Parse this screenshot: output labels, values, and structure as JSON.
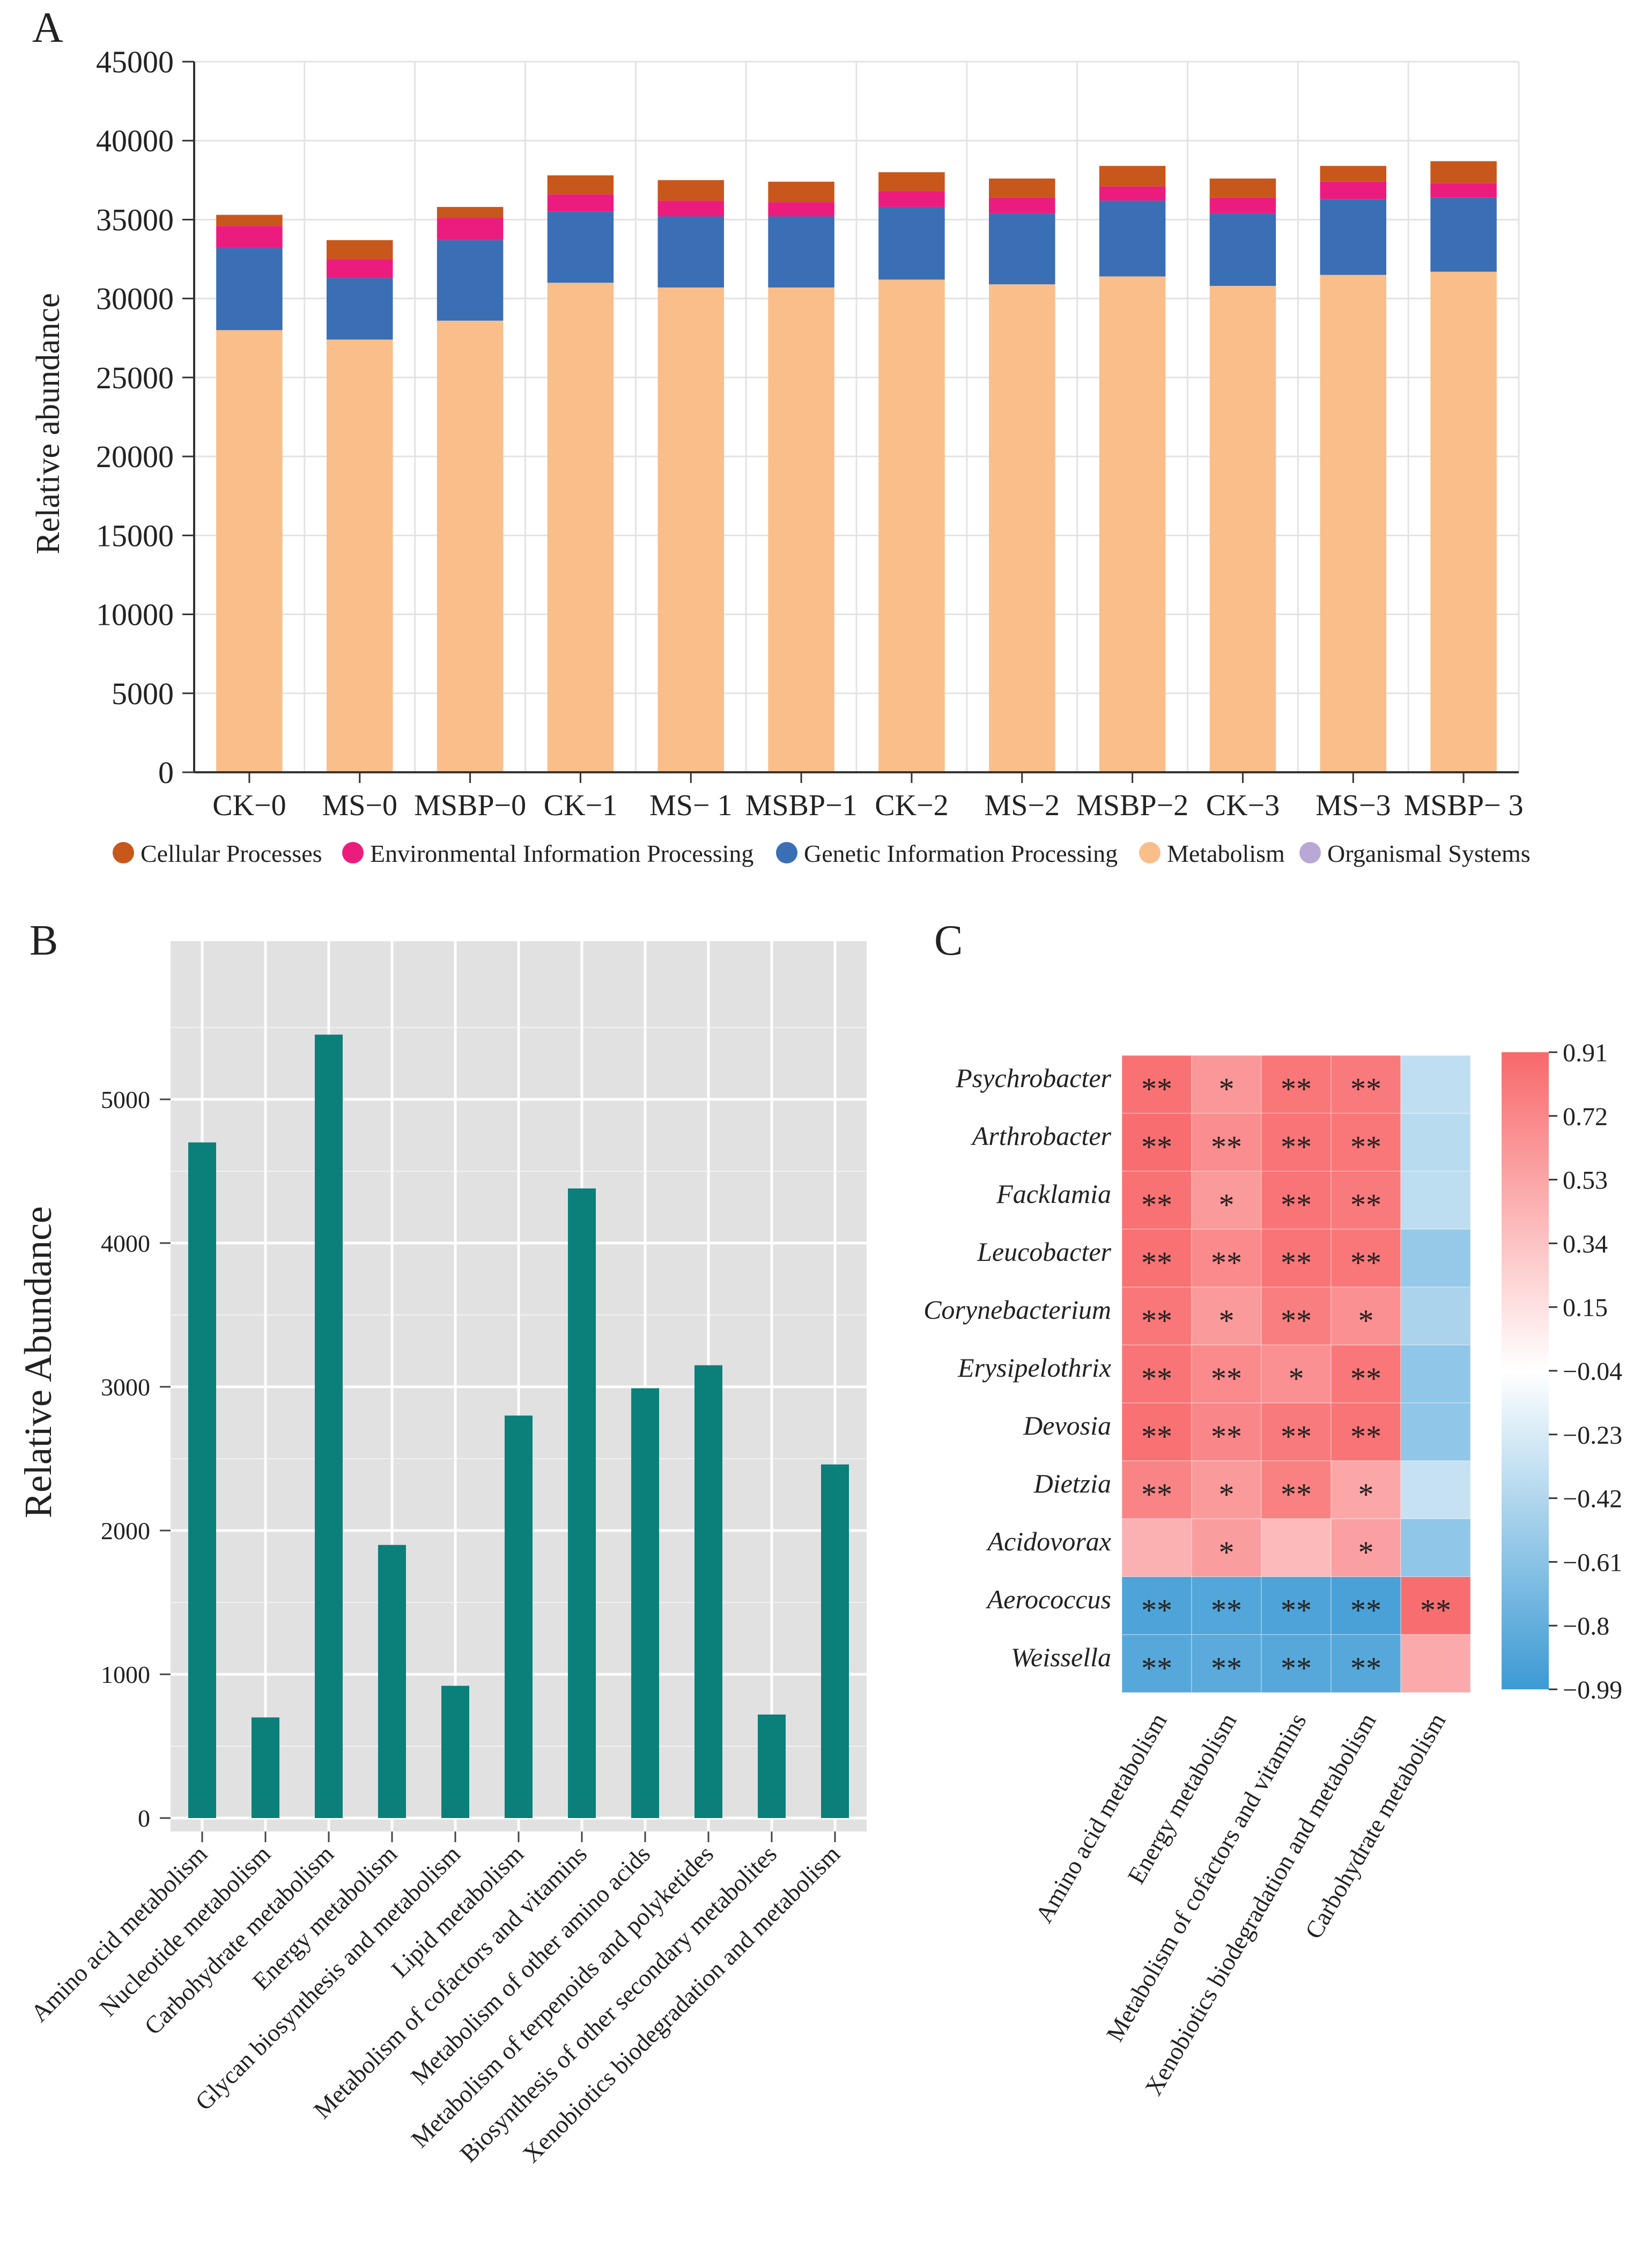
{
  "panels": {
    "A": {
      "label": "A"
    },
    "B": {
      "label": "B"
    },
    "C": {
      "label": "C"
    }
  },
  "chart_data": [
    {
      "id": "A",
      "type": "bar",
      "stacked": true,
      "title": "",
      "xlabel": "",
      "ylabel": "Relative abundance",
      "ylim": [
        0,
        45000
      ],
      "yticks": [
        0,
        5000,
        10000,
        15000,
        20000,
        25000,
        30000,
        35000,
        40000,
        45000
      ],
      "grid": true,
      "legend_position": "bottom",
      "categories": [
        "CK−0",
        "MS−0",
        "MSBP−0",
        "CK−1",
        "MS− 1",
        "MSBP−1",
        "CK−2",
        "MS−2",
        "MSBP−2",
        "CK−3",
        "MS−3",
        "MSBP− 3"
      ],
      "series": [
        {
          "name": "Metabolism",
          "color": "#F9BE8A",
          "values": [
            28000,
            27400,
            28600,
            31000,
            30700,
            30700,
            31200,
            30900,
            31400,
            30800,
            31500,
            31700
          ]
        },
        {
          "name": "Genetic Information Processing",
          "color": "#3A6EB5",
          "values": [
            5200,
            3900,
            5100,
            4500,
            4500,
            4500,
            4600,
            4500,
            4800,
            4600,
            4800,
            4700
          ]
        },
        {
          "name": "Environmental Information Processing",
          "color": "#EC1C7E",
          "values": [
            1400,
            1200,
            1400,
            1100,
            1000,
            900,
            1000,
            1000,
            900,
            1000,
            1100,
            900
          ]
        },
        {
          "name": "Cellular Processes",
          "color": "#C8571B",
          "values": [
            700,
            1200,
            700,
            1200,
            1300,
            1300,
            1200,
            1200,
            1300,
            1200,
            1000,
            1400
          ]
        },
        {
          "name": "Organismal Systems",
          "color": "#B9A8D6",
          "values": [
            0,
            0,
            0,
            0,
            0,
            0,
            0,
            0,
            0,
            0,
            0,
            0
          ]
        }
      ],
      "legend": [
        "Cellular Processes",
        "Environmental Information Processing",
        "Genetic Information Processing",
        "Metabolism",
        "Organismal Systems"
      ]
    },
    {
      "id": "B",
      "type": "bar",
      "title": "",
      "xlabel": "",
      "ylabel": "Relative Abundance",
      "ylim": [
        0,
        6100
      ],
      "yticks": [
        0,
        1000,
        2000,
        3000,
        4000,
        5000
      ],
      "grid": true,
      "bar_color": "#0B7F7A",
      "categories": [
        "Amino acid metabolism",
        "Nucleotide metabolism",
        "Carbohydrate metabolism",
        "Energy metabolism",
        "Glycan biosynthesis and metabolism",
        "Lipid metabolism",
        "Metabolism of cofactors and vitamins",
        "Metabolism of other amino acids",
        "Metabolism of terpenoids and polyketides",
        "Biosynthesis of other secondary metabolites",
        "Xenobiotics biodegradation and metabolism"
      ],
      "values": [
        4700,
        700,
        5450,
        1900,
        920,
        2800,
        4380,
        2990,
        3150,
        720,
        2460
      ]
    },
    {
      "id": "C",
      "type": "heatmap",
      "title": "",
      "rows": [
        "Psychrobacter",
        "Arthrobacter",
        "Facklamia",
        "Leucobacter",
        "Corynebacterium",
        "Erysipelothrix",
        "Devosia",
        "Dietzia",
        "Acidovorax",
        "Aerococcus",
        "Weissella"
      ],
      "columns": [
        "Amino acid metabolism",
        "Energy metabolism",
        "Metabolism of cofactors and vitamins",
        "Xenobiotics biodegradation and metabolism",
        "Carbohydrate metabolism"
      ],
      "values": [
        [
          0.85,
          0.62,
          0.82,
          0.8,
          -0.35
        ],
        [
          0.88,
          0.68,
          0.84,
          0.82,
          -0.38
        ],
        [
          0.86,
          0.6,
          0.84,
          0.8,
          -0.36
        ],
        [
          0.86,
          0.7,
          0.84,
          0.82,
          -0.55
        ],
        [
          0.82,
          0.6,
          0.78,
          0.66,
          -0.45
        ],
        [
          0.84,
          0.7,
          0.66,
          0.82,
          -0.58
        ],
        [
          0.85,
          0.72,
          0.8,
          0.84,
          -0.58
        ],
        [
          0.74,
          0.6,
          0.76,
          0.52,
          -0.32
        ],
        [
          0.46,
          0.58,
          0.4,
          0.56,
          -0.58
        ],
        [
          -0.9,
          -0.88,
          -0.9,
          -0.92,
          0.88
        ],
        [
          -0.86,
          -0.84,
          -0.86,
          -0.86,
          0.5
        ]
      ],
      "significance": [
        [
          "**",
          "*",
          "**",
          "**",
          ""
        ],
        [
          "**",
          "**",
          "**",
          "**",
          ""
        ],
        [
          "**",
          "*",
          "**",
          "**",
          ""
        ],
        [
          "**",
          "**",
          "**",
          "**",
          ""
        ],
        [
          "**",
          "*",
          "**",
          "*",
          ""
        ],
        [
          "**",
          "**",
          "*",
          "**",
          ""
        ],
        [
          "**",
          "**",
          "**",
          "**",
          ""
        ],
        [
          "**",
          "*",
          "**",
          "*",
          ""
        ],
        [
          "",
          "*",
          "",
          "*",
          ""
        ],
        [
          "**",
          "**",
          "**",
          "**",
          "**"
        ],
        [
          "**",
          "**",
          "**",
          "**",
          ""
        ]
      ],
      "colorbar": {
        "range": [
          -0.99,
          0.91
        ],
        "ticks": [
          "0.91",
          "0.72",
          "0.53",
          "0.34",
          "0.15",
          "−0.04",
          "−0.23",
          "−0.42",
          "−0.61",
          "−0.8",
          "−0.99"
        ],
        "tick_values": [
          0.91,
          0.72,
          0.53,
          0.34,
          0.15,
          -0.04,
          -0.23,
          -0.42,
          -0.61,
          -0.8,
          -0.99
        ],
        "high_color": "#F8696B",
        "mid_color": "#FFFFFF",
        "low_color": "#3C9AD4"
      }
    }
  ]
}
